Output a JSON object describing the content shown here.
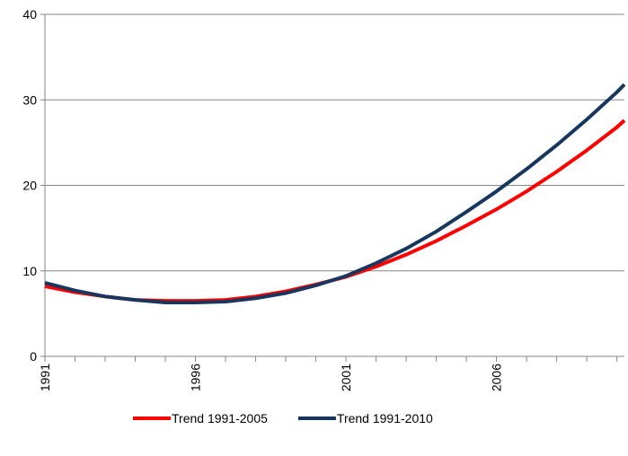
{
  "chart_data": {
    "type": "line",
    "x": [
      1991,
      1992,
      1993,
      1994,
      1995,
      1996,
      1997,
      1998,
      1999,
      2000,
      2001,
      2002,
      2003,
      2004,
      2005,
      2006,
      2007,
      2008,
      2009,
      2010,
      2010.25
    ],
    "series": [
      {
        "name": "Trend 1991-2005",
        "color": "#ff0000",
        "values": [
          8.2,
          7.5,
          7.0,
          6.6,
          6.5,
          6.5,
          6.6,
          7.0,
          7.6,
          8.4,
          9.3,
          10.5,
          11.9,
          13.5,
          15.3,
          17.2,
          19.3,
          21.6,
          24.1,
          26.8,
          27.6
        ]
      },
      {
        "name": "Trend 1991-2010",
        "color": "#17375e",
        "values": [
          8.6,
          7.7,
          7.0,
          6.6,
          6.3,
          6.3,
          6.4,
          6.8,
          7.4,
          8.3,
          9.4,
          10.9,
          12.6,
          14.6,
          16.9,
          19.3,
          21.9,
          24.7,
          27.7,
          30.9,
          31.8
        ]
      }
    ],
    "xlim": [
      1991,
      2010.25
    ],
    "xticks": [
      1991,
      1996,
      2001,
      2006
    ],
    "x_minor_ticks": [
      1992,
      1993,
      1994,
      1995,
      1997,
      1998,
      1999,
      2000,
      2002,
      2003,
      2004,
      2005,
      2007,
      2008,
      2009,
      2010
    ],
    "ylim": [
      0,
      40
    ],
    "yticks": [
      0,
      10,
      20,
      30,
      40
    ],
    "grid": true,
    "legend": "bottom"
  }
}
